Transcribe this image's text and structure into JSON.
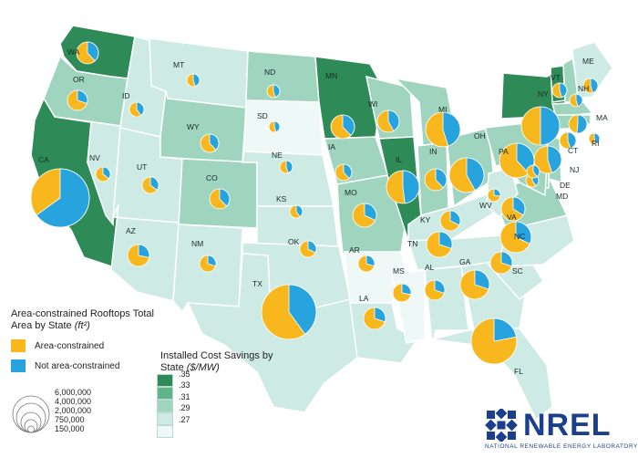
{
  "colors": {
    "area_constrained": "#f7b71d",
    "not_area_constrained": "#27a4de",
    "class_035": "#2e8b57",
    "class_033": "#5fb58a",
    "class_031": "#9fd4bf",
    "class_029": "#cdebe4",
    "class_027": "#eef8f6",
    "border": "#ffffff",
    "nrel_blue": "#1c3f8c"
  },
  "legend_roofs": {
    "title": "Area-constrained Rooftops Total Area by State",
    "units": "(ft²)",
    "area_label": "Area-constrained",
    "not_area_label": "Not area-constrained",
    "sizes": [
      "6,000,000",
      "4,000,000",
      "2,000,000",
      "750,000",
      "150,000"
    ]
  },
  "legend_savings": {
    "title": "Installed Cost Savings by State",
    "units": "($/MW)",
    "classes": [
      ".35",
      ".33",
      ".31",
      ".29",
      ".27"
    ]
  },
  "logo": {
    "name": "NREL",
    "full_name": "NATIONAL RENEWABLE ENERGY LABORATORY"
  },
  "states": [
    {
      "abbr": "WA",
      "cls": "class_035",
      "area_fraction": 0.62
    },
    {
      "abbr": "OR",
      "cls": "class_031",
      "area_fraction": 0.7
    },
    {
      "abbr": "CA",
      "cls": "class_035",
      "area_fraction": 0.35
    },
    {
      "abbr": "NV",
      "cls": "class_029",
      "area_fraction": 0.65
    },
    {
      "abbr": "MT",
      "cls": "class_029",
      "area_fraction": 0.55
    },
    {
      "abbr": "ID",
      "cls": "class_029",
      "area_fraction": 0.6
    },
    {
      "abbr": "UT",
      "cls": "class_029",
      "area_fraction": 0.65
    },
    {
      "abbr": "AZ",
      "cls": "class_029",
      "area_fraction": 0.72
    },
    {
      "abbr": "WY",
      "cls": "class_031",
      "area_fraction": 0.62
    },
    {
      "abbr": "CO",
      "cls": "class_031",
      "area_fraction": 0.62
    },
    {
      "abbr": "NM",
      "cls": "class_029",
      "area_fraction": 0.7
    },
    {
      "abbr": "ND",
      "cls": "class_031",
      "area_fraction": 0.55
    },
    {
      "abbr": "SD",
      "cls": "class_027",
      "area_fraction": 0.55
    },
    {
      "abbr": "NE",
      "cls": "class_029",
      "area_fraction": 0.55
    },
    {
      "abbr": "KS",
      "cls": "class_029",
      "area_fraction": 0.6
    },
    {
      "abbr": "OK",
      "cls": "class_029",
      "area_fraction": 0.68
    },
    {
      "abbr": "TX",
      "cls": "class_029",
      "area_fraction": 0.6
    },
    {
      "abbr": "MN",
      "cls": "class_035",
      "area_fraction": 0.62
    },
    {
      "abbr": "IA",
      "cls": "class_031",
      "area_fraction": 0.62
    },
    {
      "abbr": "MO",
      "cls": "class_031",
      "area_fraction": 0.68
    },
    {
      "abbr": "AR",
      "cls": "class_027",
      "area_fraction": 0.7
    },
    {
      "abbr": "LA",
      "cls": "class_029",
      "area_fraction": 0.7
    },
    {
      "abbr": "WI",
      "cls": "class_031",
      "area_fraction": 0.58
    },
    {
      "abbr": "IL",
      "cls": "class_035",
      "area_fraction": 0.52
    },
    {
      "abbr": "MI",
      "cls": "class_031",
      "area_fraction": 0.55
    },
    {
      "abbr": "IN",
      "cls": "class_031",
      "area_fraction": 0.62
    },
    {
      "abbr": "OH",
      "cls": "class_031",
      "area_fraction": 0.58
    },
    {
      "abbr": "KY",
      "cls": "class_029",
      "area_fraction": 0.68
    },
    {
      "abbr": "TN",
      "cls": "class_029",
      "area_fraction": 0.7
    },
    {
      "abbr": "MS",
      "cls": "class_027",
      "area_fraction": 0.72
    },
    {
      "abbr": "AL",
      "cls": "class_029",
      "area_fraction": 0.7
    },
    {
      "abbr": "GA",
      "cls": "class_029",
      "area_fraction": 0.7
    },
    {
      "abbr": "FL",
      "cls": "class_029",
      "area_fraction": 0.78
    },
    {
      "abbr": "SC",
      "cls": "class_029",
      "area_fraction": 0.7
    },
    {
      "abbr": "NC",
      "cls": "class_029",
      "area_fraction": 0.68
    },
    {
      "abbr": "VA",
      "cls": "class_031",
      "area_fraction": 0.66
    },
    {
      "abbr": "WV",
      "cls": "class_029",
      "area_fraction": 0.72
    },
    {
      "abbr": "PA",
      "cls": "class_031",
      "area_fraction": 0.62
    },
    {
      "abbr": "NY",
      "cls": "class_035",
      "area_fraction": 0.5
    },
    {
      "abbr": "VT",
      "cls": "class_035",
      "area_fraction": 0.55
    },
    {
      "abbr": "NH",
      "cls": "class_031",
      "area_fraction": 0.55
    },
    {
      "abbr": "ME",
      "cls": "class_029",
      "area_fraction": 0.55
    },
    {
      "abbr": "MA",
      "cls": "class_031",
      "area_fraction": 0.48
    },
    {
      "abbr": "RI",
      "cls": "class_031",
      "area_fraction": 0.55
    },
    {
      "abbr": "CT",
      "cls": "class_031",
      "area_fraction": 0.55
    },
    {
      "abbr": "NJ",
      "cls": "class_031",
      "area_fraction": 0.55
    },
    {
      "abbr": "DE",
      "cls": "class_031",
      "area_fraction": 0.6
    },
    {
      "abbr": "MD",
      "cls": "class_031",
      "area_fraction": 0.6
    }
  ]
}
